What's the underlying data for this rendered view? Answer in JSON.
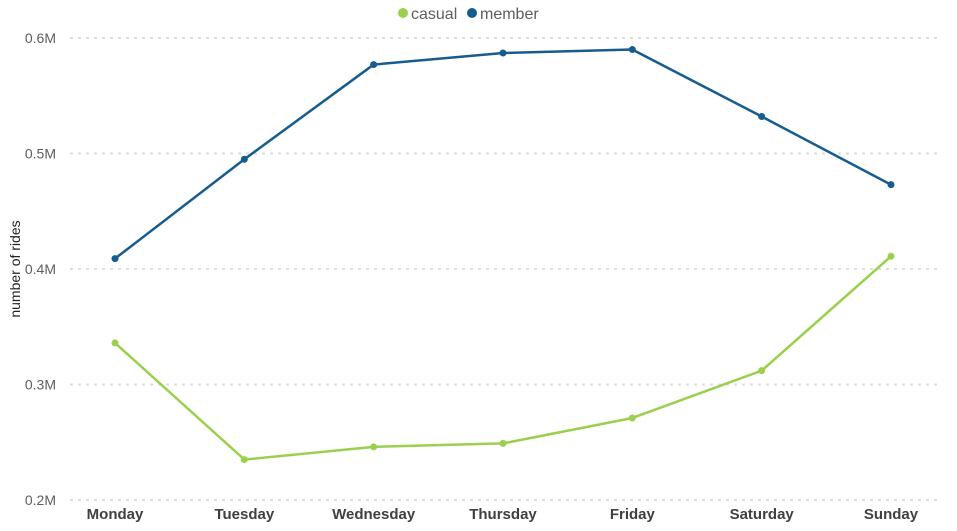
{
  "chart_data": {
    "type": "line",
    "categories": [
      "Monday",
      "Tuesday",
      "Wednesday",
      "Thursday",
      "Friday",
      "Saturday",
      "Sunday"
    ],
    "series": [
      {
        "name": "casual",
        "color": "#9ad04e",
        "values": [
          336000,
          235000,
          246000,
          249000,
          271000,
          312000,
          411000
        ]
      },
      {
        "name": "member",
        "color": "#175c8f",
        "values": [
          409000,
          495000,
          577000,
          587000,
          590000,
          532000,
          473000
        ]
      }
    ],
    "ylabel": "number of rides",
    "ylim": [
      200000,
      600000
    ],
    "yticks": [
      {
        "value": 200000,
        "label": "0.2M"
      },
      {
        "value": 300000,
        "label": "0.3M"
      },
      {
        "value": 400000,
        "label": "0.4M"
      },
      {
        "value": 500000,
        "label": "0.5M"
      },
      {
        "value": 600000,
        "label": "0.6M"
      }
    ],
    "grid": true,
    "legend_position": "top-center"
  }
}
